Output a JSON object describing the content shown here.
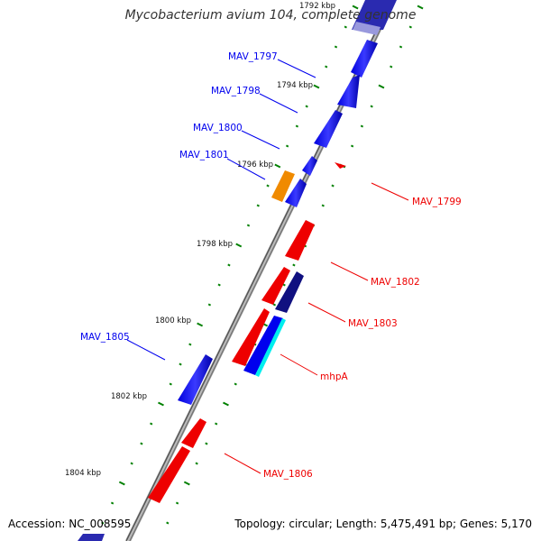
{
  "title": "Mycobacterium avium 104, complete genome",
  "footer": {
    "accession": "Accession: NC_008595",
    "summary": "Topology: circular; Length: 5,475,491 bp; Genes: 5,170"
  },
  "ticks": [
    "1792 kbp",
    "1794 kbp",
    "1796 kbp",
    "1798 kbp",
    "1800 kbp",
    "1802 kbp",
    "1804 kbp"
  ],
  "genes": [
    {
      "id": "g1",
      "label": "MAV_1797",
      "color": "#0000ee"
    },
    {
      "id": "g2",
      "label": "MAV_1798",
      "color": "#0000ee"
    },
    {
      "id": "g3",
      "label": "MAV_1800",
      "color": "#0000ee"
    },
    {
      "id": "g4",
      "label": "MAV_1801",
      "color": "#0000ee"
    },
    {
      "id": "g5",
      "label": "MAV_1799",
      "color": "#ee0000"
    },
    {
      "id": "g6",
      "label": "MAV_1802",
      "color": "#ee0000"
    },
    {
      "id": "g7",
      "label": "MAV_1803",
      "color": "#ee0000"
    },
    {
      "id": "g8",
      "label": "mhpA",
      "color": "#ee0000"
    },
    {
      "id": "g9",
      "label": "MAV_1805",
      "color": "#0000ee"
    },
    {
      "id": "g10",
      "label": "MAV_1806",
      "color": "#ee0000"
    }
  ],
  "colors": {
    "forward": "#0000ee",
    "reverse": "#ee0000",
    "orange": "#f08a00",
    "navy": "#101080",
    "cyan": "#00eeee",
    "backbone": "#8c8c8c",
    "tick_dots": "#008000"
  }
}
